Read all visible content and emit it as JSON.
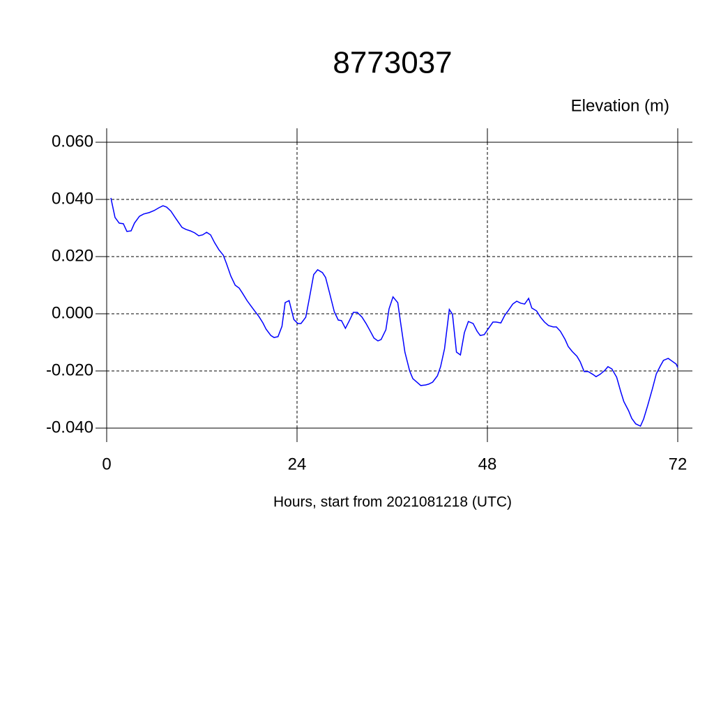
{
  "chart_data": {
    "type": "line",
    "title": "8773037",
    "subtitle": "Elevation (m)",
    "x_label": "Hours, start from 2021081218 (UTC)",
    "xlim": [
      0,
      72
    ],
    "xticks": [
      0,
      24,
      48,
      72
    ],
    "ylim": [
      -0.04,
      0.06
    ],
    "yticks": [
      {
        "value": -0.04,
        "label": "-0.040"
      },
      {
        "value": -0.02,
        "label": "-0.020"
      },
      {
        "value": 0,
        "label": "0.000"
      },
      {
        "value": 0.02,
        "label": "0.020"
      },
      {
        "value": 0.04,
        "label": "0.040"
      },
      {
        "value": 0.06,
        "label": "0.060"
      }
    ],
    "grid": true,
    "series": [
      {
        "color": "#0000ff",
        "x": [
          0.53,
          1.05,
          1.58,
          2.1,
          2.55,
          3.08,
          3.5,
          4.13,
          4.66,
          5.36,
          5.98,
          6.6,
          7.1,
          7.56,
          8.1,
          8.7,
          9.5,
          10.0,
          10.55,
          11.1,
          11.6,
          12.1,
          12.6,
          13.1,
          13.6,
          14.15,
          14.7,
          15.1,
          15.65,
          16.2,
          16.7,
          17.1,
          17.7,
          18.2,
          18.6,
          19.2,
          19.7,
          20.1,
          20.7,
          21.1,
          21.6,
          22.1,
          22.5,
          23.0,
          23.6,
          24.1,
          24.5,
          25.1,
          25.6,
          26.1,
          26.6,
          27.2,
          27.6,
          28.1,
          28.7,
          29.2,
          29.6,
          30.1,
          30.6,
          31.1,
          31.6,
          32.2,
          32.7,
          33.2,
          33.7,
          34.2,
          34.6,
          35.2,
          35.6,
          36.1,
          36.7,
          37.1,
          37.6,
          38.2,
          38.6,
          39.1,
          39.6,
          40.2,
          40.6,
          41.1,
          41.7,
          42.1,
          42.6,
          43.2,
          43.6,
          44.1,
          44.6,
          45.1,
          45.6,
          46.2,
          46.7,
          47.1,
          47.6,
          48.2,
          48.7,
          49.1,
          49.7,
          50.2,
          50.6,
          51.2,
          51.7,
          52.2,
          52.7,
          53.2,
          53.6,
          54.2,
          54.7,
          55.2,
          55.7,
          56.3,
          56.7,
          57.2,
          57.8,
          58.2,
          58.7,
          59.3,
          59.7,
          60.2,
          60.7,
          61.3,
          61.7,
          62.2,
          62.8,
          63.2,
          63.7,
          64.3,
          64.8,
          65.2,
          65.8,
          66.2,
          66.7,
          67.3,
          67.7,
          68.2,
          68.8,
          69.3,
          69.8,
          70.2,
          70.8,
          71.3,
          71.8,
          72.0
        ],
        "values": [
          0.0405,
          0.0337,
          0.0317,
          0.0315,
          0.0288,
          0.029,
          0.0317,
          0.0341,
          0.0349,
          0.0354,
          0.0361,
          0.0371,
          0.0378,
          0.0373,
          0.0359,
          0.0334,
          0.0302,
          0.0295,
          0.029,
          0.0283,
          0.0273,
          0.0276,
          0.0285,
          0.0276,
          0.0249,
          0.0224,
          0.0205,
          0.0176,
          0.0132,
          0.01,
          0.009,
          0.0073,
          0.0046,
          0.0027,
          0.0012,
          -0.001,
          -0.0032,
          -0.0054,
          -0.0076,
          -0.0083,
          -0.008,
          -0.0044,
          0.0039,
          0.0046,
          -0.002,
          -0.0034,
          -0.0034,
          -0.0012,
          0.0061,
          0.0137,
          0.0154,
          0.0144,
          0.0127,
          0.0073,
          0.0007,
          -0.0022,
          -0.0024,
          -0.0051,
          -0.0024,
          0.0005,
          0.0005,
          -0.0012,
          -0.0034,
          -0.0059,
          -0.0085,
          -0.0095,
          -0.009,
          -0.0056,
          0.0017,
          0.0059,
          0.0039,
          -0.0039,
          -0.0134,
          -0.02,
          -0.0227,
          -0.0239,
          -0.0251,
          -0.0249,
          -0.0246,
          -0.0239,
          -0.0217,
          -0.0185,
          -0.0122,
          0.0015,
          -0.0002,
          -0.0134,
          -0.0144,
          -0.0066,
          -0.0027,
          -0.0034,
          -0.0061,
          -0.0076,
          -0.0073,
          -0.0049,
          -0.0029,
          -0.0029,
          -0.0032,
          -0.0005,
          0.001,
          0.0034,
          0.0044,
          0.0037,
          0.0034,
          0.0054,
          0.002,
          0.001,
          -0.0012,
          -0.0029,
          -0.0041,
          -0.0046,
          -0.0046,
          -0.0061,
          -0.009,
          -0.0115,
          -0.0132,
          -0.0149,
          -0.0168,
          -0.0202,
          -0.0202,
          -0.0212,
          -0.022,
          -0.0212,
          -0.0198,
          -0.0185,
          -0.0193,
          -0.0222,
          -0.0271,
          -0.0307,
          -0.0339,
          -0.0366,
          -0.0385,
          -0.0393,
          -0.0368,
          -0.0322,
          -0.0263,
          -0.021,
          -0.0183,
          -0.0163,
          -0.0156,
          -0.0166,
          -0.0176,
          -0.0188
        ]
      }
    ]
  }
}
